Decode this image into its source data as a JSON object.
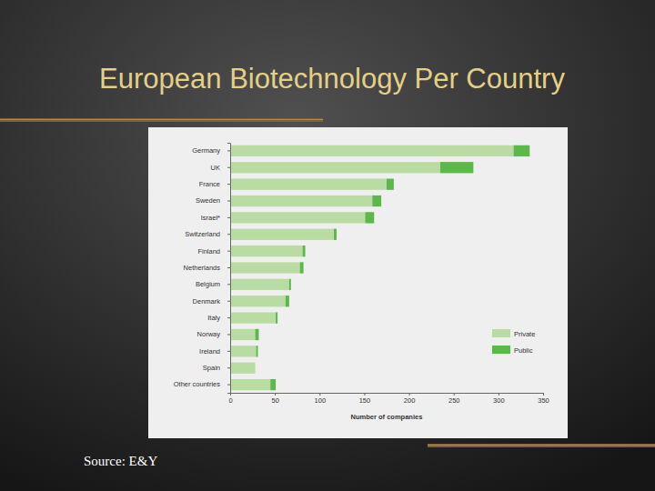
{
  "chart_data": {
    "type": "bar",
    "orientation": "horizontal",
    "stacked": true,
    "title": "European Biotechnology Per Country",
    "annotations": [
      "Source: E&Y"
    ],
    "xlabel": "Number of companies",
    "categories": [
      "Germany",
      "UK",
      "France",
      "Sweden",
      "Israel*",
      "Switzerland",
      "Finland",
      "Netherlands",
      "Belgium",
      "Denmark",
      "Italy",
      "Norway",
      "Ireland",
      "Spain",
      "Other countries"
    ],
    "series": [
      {
        "name": "Private",
        "color": "#b9dca2",
        "values": [
          317,
          235,
          175,
          159,
          151,
          116,
          81,
          78,
          66,
          62,
          51,
          28,
          29,
          28,
          45
        ]
      },
      {
        "name": "Public",
        "color": "#5bb849",
        "values": [
          18,
          37,
          8,
          10,
          10,
          3,
          3,
          4,
          2,
          4,
          2,
          4,
          2,
          0,
          6
        ]
      }
    ],
    "xlim": [
      0,
      350
    ],
    "xticks": [
      0,
      50,
      100,
      150,
      200,
      250,
      300,
      350
    ],
    "legend": "right",
    "grid": false
  }
}
